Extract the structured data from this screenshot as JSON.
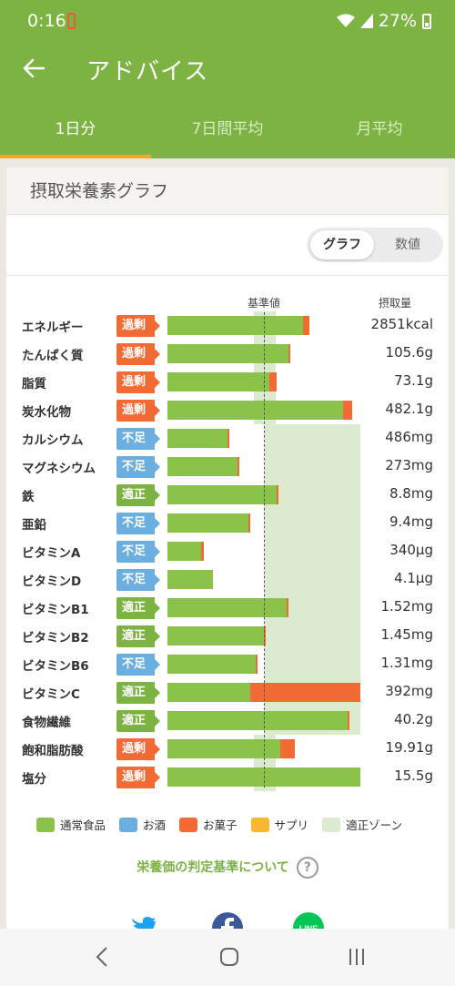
{
  "status": {
    "time": "0:16",
    "battery": "27%"
  },
  "appbar": {
    "title": "アドバイス"
  },
  "tabs": [
    {
      "label": "1日分",
      "active": true
    },
    {
      "label": "7日間平均",
      "active": false
    },
    {
      "label": "月平均",
      "active": false
    }
  ],
  "card": {
    "title": "摂取栄養素グラフ"
  },
  "toggle": {
    "graph": "グラフ",
    "numeric": "数値"
  },
  "columns": {
    "reference": "基準値",
    "intake": "摂取量"
  },
  "colors": {
    "normal_food": "#8bc34a",
    "alcohol": "#6aafe0",
    "sweets": "#f26b35",
    "supplement": "#f7b733",
    "zone": "#dcebd0",
    "excess": "#f26b35",
    "deficient": "#6aafe0",
    "adequate": "#7cb342"
  },
  "nutrients": [
    {
      "name": "エネルギー",
      "status": "過剰",
      "status_key": "excess",
      "value": "2851kcal",
      "normal": 1.39,
      "sweets": 0.07,
      "zone": [
        0.89,
        1.11
      ]
    },
    {
      "name": "たんぱく質",
      "status": "過剰",
      "status_key": "excess",
      "value": "105.6g",
      "normal": 1.24,
      "sweets": 0.02,
      "zone": [
        0.89,
        1.11
      ]
    },
    {
      "name": "脂質",
      "status": "過剰",
      "status_key": "excess",
      "value": "73.1g",
      "normal": 1.05,
      "sweets": 0.07,
      "zone": [
        0.89,
        1.11
      ]
    },
    {
      "name": "炭水化物",
      "status": "過剰",
      "status_key": "excess",
      "value": "482.1g",
      "normal": 1.8,
      "sweets": 0.1,
      "zone": [
        0.89,
        1.11
      ]
    },
    {
      "name": "カルシウム",
      "status": "不足",
      "status_key": "deficient",
      "value": "486mg",
      "normal": 0.62,
      "sweets": 0.01,
      "zone": [
        1.0,
        1.98
      ]
    },
    {
      "name": "マグネシウム",
      "status": "不足",
      "status_key": "deficient",
      "value": "273mg",
      "normal": 0.72,
      "sweets": 0.01,
      "zone": [
        1.0,
        1.98
      ]
    },
    {
      "name": "鉄",
      "status": "適正",
      "status_key": "adequate",
      "value": "8.8mg",
      "normal": 1.12,
      "sweets": 0.02,
      "zone": [
        1.0,
        1.98
      ]
    },
    {
      "name": "亜鉛",
      "status": "不足",
      "status_key": "deficient",
      "value": "9.4mg",
      "normal": 0.83,
      "sweets": 0.01,
      "zone": [
        1.0,
        1.98
      ]
    },
    {
      "name": "ビタミンA",
      "status": "不足",
      "status_key": "deficient",
      "value": "340µg",
      "normal": 0.35,
      "sweets": 0.02,
      "zone": [
        1.0,
        1.98
      ]
    },
    {
      "name": "ビタミンD",
      "status": "不足",
      "status_key": "deficient",
      "value": "4.1µg",
      "normal": 0.47,
      "sweets": 0,
      "zone": [
        1.0,
        1.98
      ]
    },
    {
      "name": "ビタミンB1",
      "status": "適正",
      "status_key": "adequate",
      "value": "1.52mg",
      "normal": 1.22,
      "sweets": 0.02,
      "zone": [
        1.0,
        1.98
      ]
    },
    {
      "name": "ビタミンB2",
      "status": "適正",
      "status_key": "adequate",
      "value": "1.45mg",
      "normal": 0.99,
      "sweets": 0.02,
      "zone": [
        1.0,
        1.98
      ]
    },
    {
      "name": "ビタミンB6",
      "status": "不足",
      "status_key": "deficient",
      "value": "1.31mg",
      "normal": 0.91,
      "sweets": 0.01,
      "zone": [
        1.0,
        1.98
      ]
    },
    {
      "name": "ビタミンC",
      "status": "適正",
      "status_key": "adequate",
      "value": "392mg",
      "normal": 0.85,
      "sweets": 1.13,
      "zone": [
        1.0,
        1.98
      ]
    },
    {
      "name": "食物繊維",
      "status": "適正",
      "status_key": "adequate",
      "value": "40.2g",
      "normal": 1.85,
      "sweets": 0.02,
      "zone": [
        1.0,
        1.98
      ]
    },
    {
      "name": "飽和脂肪酸",
      "status": "過剰",
      "status_key": "excess",
      "value": "19.91g",
      "normal": 1.16,
      "sweets": 0.15,
      "zone": [
        0.89,
        1.11
      ]
    },
    {
      "name": "塩分",
      "status": "過剰",
      "status_key": "excess",
      "value": "15.5g",
      "normal": 1.98,
      "sweets": 0,
      "zone": [
        0.89,
        1.11
      ]
    }
  ],
  "legend": [
    {
      "label": "通常食品",
      "color": "#8bc34a"
    },
    {
      "label": "お酒",
      "color": "#6aafe0"
    },
    {
      "label": "お菓子",
      "color": "#f26b35"
    },
    {
      "label": "サプリ",
      "color": "#f7b733"
    },
    {
      "label": "適正ゾーン",
      "color": "#dcebd0"
    }
  ],
  "criteria_link": "栄養価の判定基準について",
  "help_icon_label": "?",
  "share": [
    {
      "icon": "twitter-icon",
      "color": "#1da1f2"
    },
    {
      "icon": "facebook-icon",
      "color": "#3b5998"
    },
    {
      "icon": "line-icon",
      "color": "#06c755",
      "label": "LINE"
    }
  ]
}
